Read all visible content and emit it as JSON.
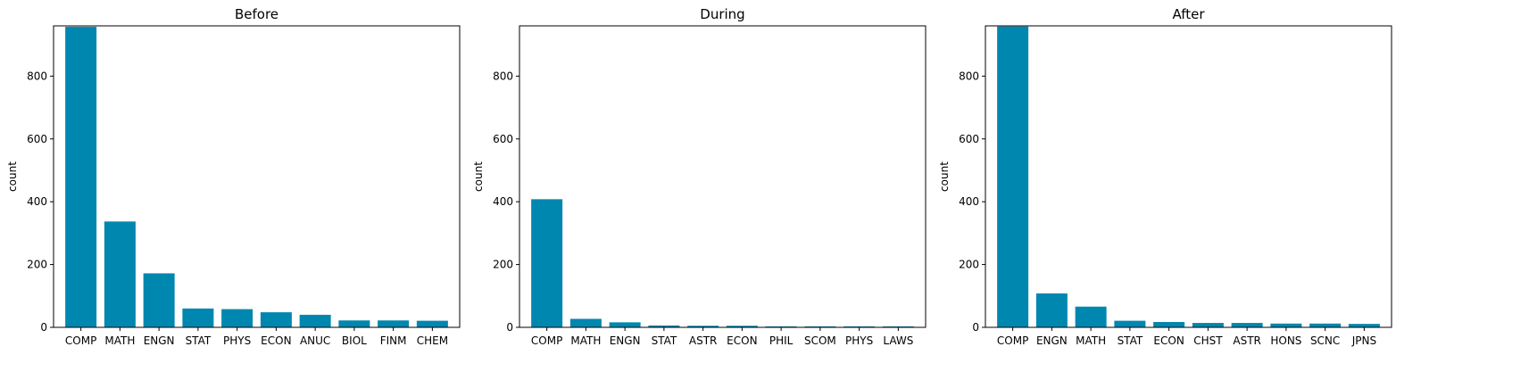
{
  "chart_data": [
    {
      "type": "bar",
      "title": "Before",
      "xlabel": "",
      "ylabel": "count",
      "ylim": [
        0,
        960
      ],
      "yticks": [
        0,
        200,
        400,
        600,
        800
      ],
      "categories": [
        "COMP",
        "MATH",
        "ENGN",
        "STAT",
        "PHYS",
        "ECON",
        "ANUC",
        "BIOL",
        "FINM",
        "CHEM"
      ],
      "values": [
        957,
        337,
        172,
        60,
        58,
        48,
        40,
        22,
        22,
        21
      ],
      "color": "#0087b0",
      "grid": false
    },
    {
      "type": "bar",
      "title": "During",
      "xlabel": "",
      "ylabel": "count",
      "ylim": [
        0,
        960
      ],
      "yticks": [
        0,
        200,
        400,
        600,
        800
      ],
      "categories": [
        "COMP",
        "MATH",
        "ENGN",
        "STAT",
        "ASTR",
        "ECON",
        "PHIL",
        "SCOM",
        "PHYS",
        "LAWS"
      ],
      "values": [
        408,
        27,
        16,
        6,
        5,
        5,
        3,
        3,
        3,
        3
      ],
      "color": "#0087b0",
      "grid": false
    },
    {
      "type": "bar",
      "title": "After",
      "xlabel": "",
      "ylabel": "count",
      "ylim": [
        0,
        960
      ],
      "yticks": [
        0,
        200,
        400,
        600,
        800
      ],
      "categories": [
        "COMP",
        "ENGN",
        "MATH",
        "STAT",
        "ECON",
        "CHST",
        "ASTR",
        "HONS",
        "SCNC",
        "JPNS"
      ],
      "values": [
        958,
        108,
        66,
        21,
        17,
        14,
        14,
        12,
        12,
        11
      ],
      "color": "#0087b0",
      "grid": false
    }
  ]
}
